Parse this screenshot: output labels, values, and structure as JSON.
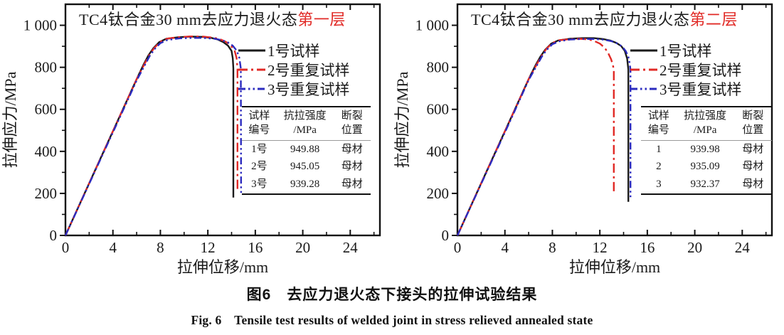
{
  "figure": {
    "caption_zh": "图6　去应力退火态下接头的拉伸试验结果",
    "caption_en": "Fig. 6　Tensile test results of welded joint in stress relieved annealed state"
  },
  "colors": {
    "series1": "#1a1a1a",
    "series2": "#e12a26",
    "series3": "#2b2bbf",
    "title_highlight": "#e12a26",
    "frame": "#111111"
  },
  "chart_data": [
    {
      "type": "line",
      "title_prefix": "TC4钛合金30 mm去应力退火态",
      "title_highlight": "第一层",
      "xlabel": "拉伸位移/mm",
      "ylabel": "拉伸应力/MPa",
      "xlim": [
        0,
        26.5
      ],
      "ylim": [
        0,
        1100
      ],
      "xticks": [
        0,
        4,
        8,
        12,
        16,
        20,
        24
      ],
      "xtick_labels": [
        "0",
        "4",
        "8",
        "12",
        "16",
        "20",
        "24"
      ],
      "x_minor_ticks": [
        2,
        6,
        10,
        14,
        18,
        22,
        26
      ],
      "yticks": [
        0,
        200,
        400,
        600,
        800,
        1000
      ],
      "ytick_labels": [
        "0",
        "200",
        "400",
        "600",
        "800",
        "1 000"
      ],
      "y_minor_ticks": [
        100,
        300,
        500,
        700,
        900
      ],
      "grid": false,
      "legend_position": "inside-upper-right",
      "series": [
        {
          "name": "1号试样",
          "color": "#1a1a1a",
          "dash": "solid",
          "points": [
            [
              0,
              0
            ],
            [
              1.5,
              186
            ],
            [
              3,
              372
            ],
            [
              4.5,
              558
            ],
            [
              6,
              744
            ],
            [
              6.6,
              815
            ],
            [
              7.0,
              858
            ],
            [
              7.4,
              890
            ],
            [
              7.9,
              920
            ],
            [
              8.5,
              936
            ],
            [
              9.5,
              943
            ],
            [
              10.5,
              946
            ],
            [
              11.5,
              945
            ],
            [
              12.3,
              940
            ],
            [
              12.8,
              933
            ],
            [
              13.3,
              920
            ],
            [
              13.7,
              903
            ],
            [
              14.0,
              878
            ],
            [
              14.1,
              842
            ],
            [
              14.15,
              795
            ],
            [
              14.15,
              180
            ]
          ]
        },
        {
          "name": "2号重复试样",
          "color": "#e12a26",
          "dash": "dash-dot",
          "points": [
            [
              0,
              0
            ],
            [
              1.5,
              186
            ],
            [
              3,
              372
            ],
            [
              4.5,
              558
            ],
            [
              6,
              744
            ],
            [
              6.7,
              820
            ],
            [
              7.1,
              862
            ],
            [
              7.5,
              893
            ],
            [
              8.0,
              922
            ],
            [
              8.6,
              937
            ],
            [
              9.6,
              944
            ],
            [
              10.6,
              947
            ],
            [
              11.6,
              946
            ],
            [
              12.5,
              941
            ],
            [
              13.0,
              934
            ],
            [
              13.5,
              922
            ],
            [
              13.9,
              906
            ],
            [
              14.25,
              880
            ],
            [
              14.42,
              845
            ],
            [
              14.5,
              795
            ],
            [
              14.5,
              210
            ]
          ]
        },
        {
          "name": "3号重复试样",
          "color": "#2b2bbf",
          "dash": "dash-dot-dot",
          "points": [
            [
              0,
              0
            ],
            [
              1.5,
              184
            ],
            [
              3,
              368
            ],
            [
              4.5,
              552
            ],
            [
              6,
              738
            ],
            [
              6.7,
              812
            ],
            [
              7.1,
              854
            ],
            [
              7.5,
              886
            ],
            [
              8.0,
              915
            ],
            [
              8.6,
              930
            ],
            [
              9.6,
              938
            ],
            [
              10.6,
              940
            ],
            [
              11.6,
              940
            ],
            [
              12.6,
              936
            ],
            [
              13.2,
              929
            ],
            [
              13.7,
              918
            ],
            [
              14.1,
              903
            ],
            [
              14.45,
              878
            ],
            [
              14.65,
              845
            ],
            [
              14.78,
              795
            ],
            [
              14.8,
              195
            ]
          ]
        }
      ],
      "inset_table": {
        "headers": [
          "试样\n编号",
          "抗拉强度\n/MPa",
          "断裂\n位置"
        ],
        "rows": [
          [
            "1号",
            "949.88",
            "母材"
          ],
          [
            "2号",
            "945.05",
            "母材"
          ],
          [
            "3号",
            "939.28",
            "母材"
          ]
        ]
      }
    },
    {
      "type": "line",
      "title_prefix": "TC4钛合金30 mm去应力退火态",
      "title_highlight": "第二层",
      "xlabel": "拉伸位移/mm",
      "ylabel": "拉伸应力/MPa",
      "xlim": [
        0,
        26.5
      ],
      "ylim": [
        0,
        1100
      ],
      "xticks": [
        0,
        4,
        8,
        12,
        16,
        20,
        24
      ],
      "xtick_labels": [
        "0",
        "4",
        "8",
        "12",
        "16",
        "20",
        "24"
      ],
      "x_minor_ticks": [
        2,
        6,
        10,
        14,
        18,
        22,
        26
      ],
      "yticks": [
        0,
        200,
        400,
        600,
        800,
        1000
      ],
      "ytick_labels": [
        "0",
        "200",
        "400",
        "600",
        "800",
        "1 000"
      ],
      "y_minor_ticks": [
        100,
        300,
        500,
        700,
        900
      ],
      "grid": false,
      "legend_position": "inside-upper-right",
      "series": [
        {
          "name": "1号试样",
          "color": "#1a1a1a",
          "dash": "solid",
          "points": [
            [
              0,
              0
            ],
            [
              1.5,
              186
            ],
            [
              3,
              372
            ],
            [
              4.5,
              558
            ],
            [
              6,
              744
            ],
            [
              6.6,
              812
            ],
            [
              7.0,
              852
            ],
            [
              7.4,
              884
            ],
            [
              7.9,
              913
            ],
            [
              8.5,
              928
            ],
            [
              9.5,
              936
            ],
            [
              10.5,
              939
            ],
            [
              11.5,
              939
            ],
            [
              12.3,
              934
            ],
            [
              12.9,
              927
            ],
            [
              13.4,
              916
            ],
            [
              13.8,
              901
            ],
            [
              14.1,
              878
            ],
            [
              14.3,
              842
            ],
            [
              14.4,
              790
            ],
            [
              14.4,
              160
            ]
          ]
        },
        {
          "name": "2号重复试样",
          "color": "#e12a26",
          "dash": "dash-dot",
          "points": [
            [
              0,
              0
            ],
            [
              1.5,
              186
            ],
            [
              3,
              372
            ],
            [
              4.5,
              558
            ],
            [
              6,
              744
            ],
            [
              6.7,
              816
            ],
            [
              7.1,
              856
            ],
            [
              7.5,
              888
            ],
            [
              8.0,
              916
            ],
            [
              8.6,
              929
            ],
            [
              9.5,
              934
            ],
            [
              10.3,
              936
            ],
            [
              11.0,
              933
            ],
            [
              11.5,
              926
            ],
            [
              12.0,
              913
            ],
            [
              12.4,
              894
            ],
            [
              12.7,
              868
            ],
            [
              12.95,
              838
            ],
            [
              13.1,
              810
            ],
            [
              13.18,
              790
            ],
            [
              13.18,
              205
            ]
          ]
        },
        {
          "name": "3号重复试样",
          "color": "#2b2bbf",
          "dash": "dash-dot-dot",
          "points": [
            [
              0,
              0
            ],
            [
              1.5,
              184
            ],
            [
              3,
              368
            ],
            [
              4.5,
              552
            ],
            [
              6,
              740
            ],
            [
              6.7,
              810
            ],
            [
              7.1,
              850
            ],
            [
              7.5,
              882
            ],
            [
              8.0,
              910
            ],
            [
              8.6,
              924
            ],
            [
              9.5,
              932
            ],
            [
              10.5,
              935
            ],
            [
              11.5,
              935
            ],
            [
              12.4,
              931
            ],
            [
              13.0,
              924
            ],
            [
              13.5,
              913
            ],
            [
              13.9,
              898
            ],
            [
              14.2,
              876
            ],
            [
              14.45,
              842
            ],
            [
              14.58,
              790
            ],
            [
              14.58,
              170
            ]
          ]
        }
      ],
      "inset_table": {
        "headers": [
          "试样\n编号",
          "抗拉强度\n/MPa",
          "断裂\n位置"
        ],
        "rows": [
          [
            "1",
            "939.98",
            "母材"
          ],
          [
            "2",
            "935.09",
            "母材"
          ],
          [
            "3",
            "932.37",
            "母材"
          ]
        ]
      }
    }
  ]
}
